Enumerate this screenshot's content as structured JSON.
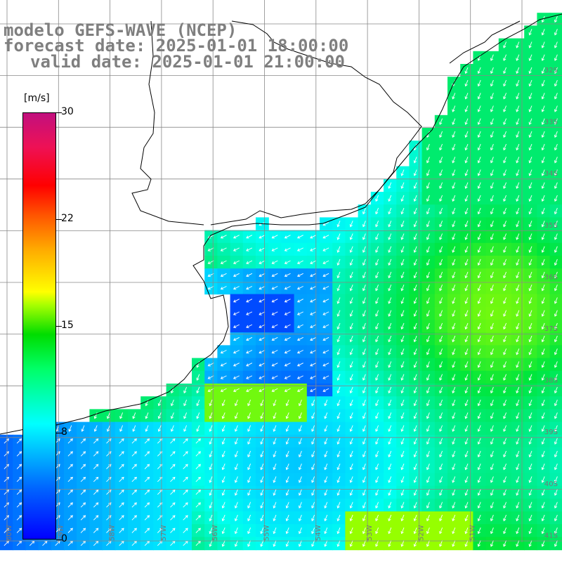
{
  "header": {
    "model_line": "modelo GEFS-WAVE (NCEP)",
    "forecast_line": "forecast date: 2025-01-01 18:00:00",
    "valid_line": "valid date: 2025-01-01 21:00:00"
  },
  "colorbar": {
    "units": "[m/s]",
    "ticks": [
      "30",
      "22",
      "15",
      "8",
      "0"
    ]
  },
  "lat_labels": [
    "32S",
    "33S",
    "34S",
    "35S",
    "36S",
    "37S",
    "38S",
    "39S",
    "40S",
    "41S"
  ],
  "lon_labels": [
    "60W",
    "59W",
    "58W",
    "57W",
    "56W",
    "55W",
    "54W",
    "53W",
    "52W",
    "51W"
  ],
  "colors": {
    "title": "#7f7f7f",
    "land": "#ffffff",
    "coast": "#000000",
    "grid": "#888888",
    "arrow": "#ffffff"
  },
  "field": {
    "variable": "wind speed",
    "units": "m/s",
    "range": [
      0,
      30
    ]
  }
}
